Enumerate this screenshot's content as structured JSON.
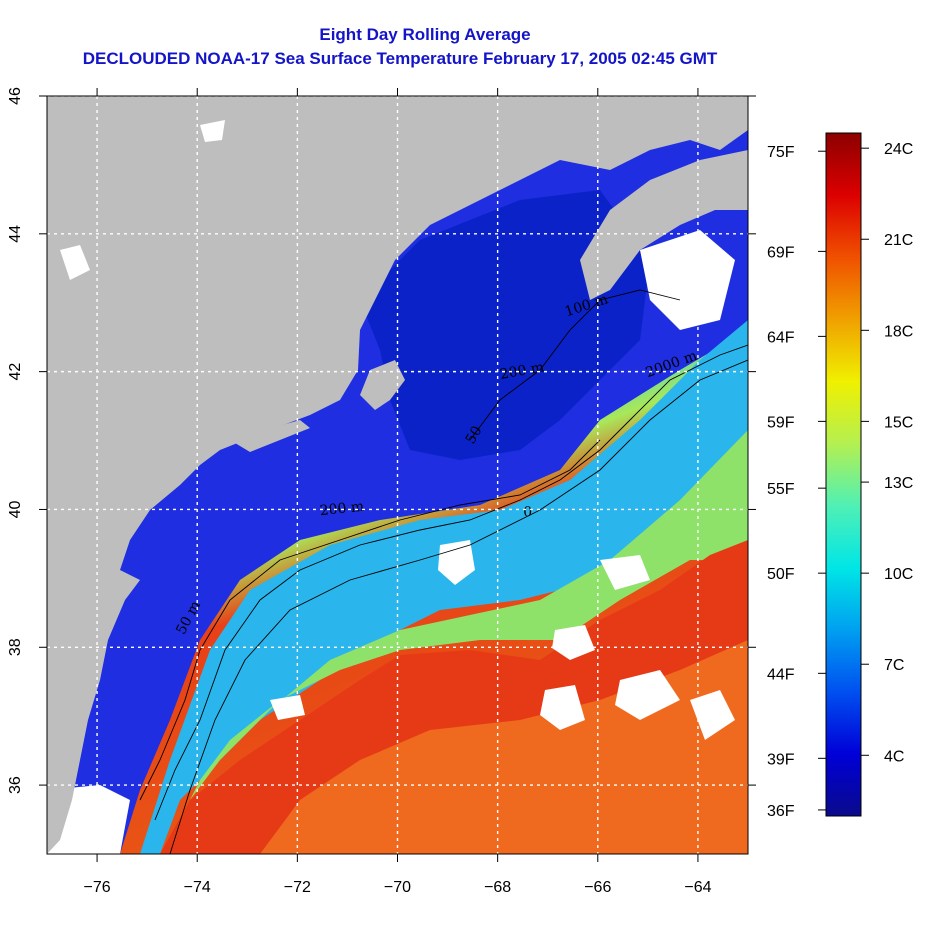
{
  "title_line1": "Eight Day Rolling Average",
  "title_line2": "DECLOUDED NOAA-17 Sea Surface Temperature February 17, 2005 02:45 GMT",
  "map": {
    "lon_range": [
      -77,
      -63
    ],
    "lat_range": [
      35,
      46
    ],
    "lon_ticks": [
      -76,
      -74,
      -72,
      -70,
      -68,
      -66,
      -64
    ],
    "lat_ticks": [
      36,
      38,
      40,
      42,
      44,
      46
    ],
    "lon_tick_labels": [
      "−76",
      "−74",
      "−72",
      "−70",
      "−68",
      "−66",
      "−64"
    ],
    "lat_tick_labels": [
      "36",
      "38",
      "40",
      "42",
      "44",
      "46"
    ],
    "gridlines": true,
    "land_color": "#bebebe",
    "cloud_color": "#ffffff",
    "contour_labels": [
      {
        "text": "50 m",
        "lon": -74.1,
        "lat": 38.4,
        "rotate": -62
      },
      {
        "text": "200 m",
        "lon": -71.1,
        "lat": 39.95,
        "rotate": -6
      },
      {
        "text": "50",
        "lon": -68.4,
        "lat": 41.05,
        "rotate": -60
      },
      {
        "text": "100 m",
        "lon": -66.2,
        "lat": 42.9,
        "rotate": -18
      },
      {
        "text": "200 m",
        "lon": -67.5,
        "lat": 41.95,
        "rotate": -10
      },
      {
        "text": "2000 m",
        "lon": -64.5,
        "lat": 42.05,
        "rotate": -20
      },
      {
        "text": "0",
        "lon": -67.4,
        "lat": 39.9,
        "rotate": 0
      }
    ]
  },
  "colorbar": {
    "celsius_labels": [
      {
        "label": "24C",
        "temp_c": 24
      },
      {
        "label": "21C",
        "temp_c": 21
      },
      {
        "label": "18C",
        "temp_c": 18
      },
      {
        "label": "15C",
        "temp_c": 15
      },
      {
        "label": "13C",
        "temp_c": 13
      },
      {
        "label": "10C",
        "temp_c": 10
      },
      {
        "label": "7C",
        "temp_c": 7
      },
      {
        "label": "4C",
        "temp_c": 4
      }
    ],
    "fahrenheit_labels": [
      {
        "label": "75F",
        "temp_c": 23.9
      },
      {
        "label": "69F",
        "temp_c": 20.6
      },
      {
        "label": "64F",
        "temp_c": 17.8
      },
      {
        "label": "59F",
        "temp_c": 15.0
      },
      {
        "label": "55F",
        "temp_c": 12.8
      },
      {
        "label": "50F",
        "temp_c": 10.0
      },
      {
        "label": "44F",
        "temp_c": 6.7
      },
      {
        "label": "39F",
        "temp_c": 3.9
      },
      {
        "label": "36F",
        "temp_c": 2.2
      }
    ],
    "range_c": [
      2,
      24.5
    ],
    "colors": [
      "#0a0a8c",
      "#0000d8",
      "#0050f0",
      "#00a0f0",
      "#00e6e6",
      "#50f0b4",
      "#b4f050",
      "#f0f000",
      "#f0a000",
      "#f05000",
      "#dc0000",
      "#8c0000"
    ]
  }
}
